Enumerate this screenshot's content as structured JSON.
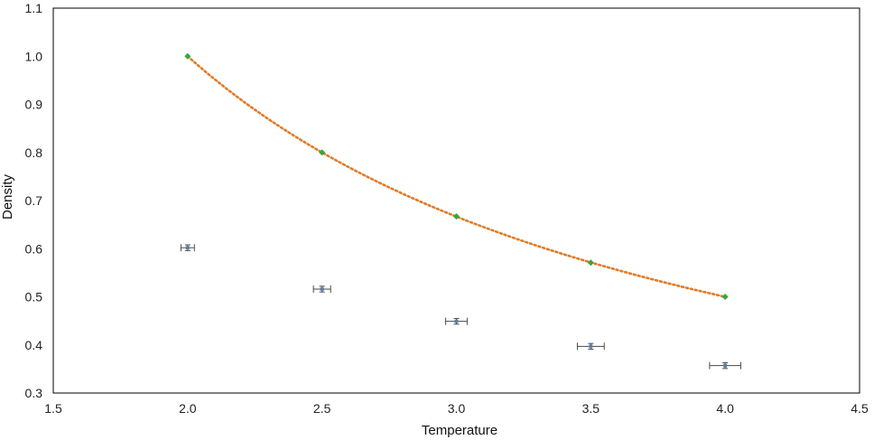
{
  "chart_data": {
    "type": "scatter",
    "title": "",
    "xlabel": "Temperature",
    "ylabel": "Density",
    "xlim": [
      1.5,
      4.5
    ],
    "ylim": [
      0.3,
      1.1
    ],
    "x_ticks": [
      "1.5",
      "2.0",
      "2.5",
      "3.0",
      "3.5",
      "4.0",
      "4.5"
    ],
    "y_ticks": [
      "0.3",
      "0.4",
      "0.5",
      "0.6",
      "0.7",
      "0.8",
      "0.9",
      "1.0",
      "1.1"
    ],
    "grid": false,
    "legend": "none",
    "series": [
      {
        "kind": "scatter-errorbars",
        "color": "#5b7fa6",
        "x": [
          2.0,
          2.5,
          3.0,
          3.5,
          4.0
        ],
        "y": [
          0.602,
          0.516,
          0.449,
          0.397,
          0.357
        ],
        "x_err": [
          0.025,
          0.032,
          0.04,
          0.05,
          0.058
        ],
        "y_err": [
          0.006,
          0.006,
          0.006,
          0.006,
          0.006
        ]
      },
      {
        "kind": "line-dotted-with-markers",
        "color": "#e07b28",
        "marker_color": "#3aa63a",
        "x": [
          2.0,
          2.5,
          3.0,
          3.5,
          4.0
        ],
        "y": [
          1.0,
          0.8,
          0.667,
          0.571,
          0.5
        ]
      }
    ]
  }
}
